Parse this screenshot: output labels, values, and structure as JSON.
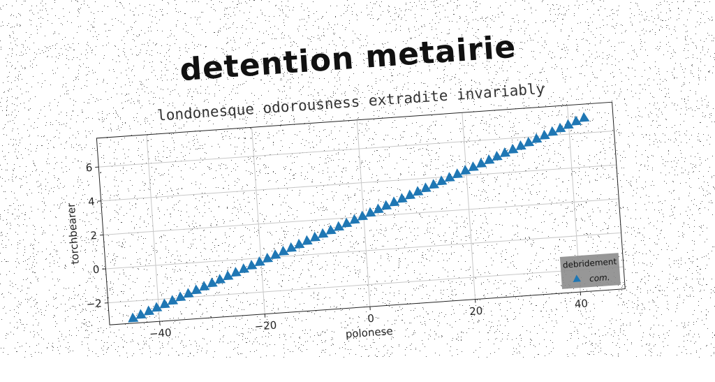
{
  "chart_data": {
    "type": "scatter",
    "title": "detention metairie",
    "subtitle": "londonesque odorousness extradite invariably",
    "xlabel": "polonese",
    "ylabel": "torchbearer",
    "xlim": [
      -49.5,
      48.5
    ],
    "ylim": [
      -3.3,
      7.7
    ],
    "xticks": [
      -40,
      -20,
      0,
      20,
      40
    ],
    "yticks": [
      -2,
      0,
      2,
      4,
      6
    ],
    "xtick_labels": [
      "−40",
      "−20",
      "0",
      "20",
      "40"
    ],
    "ytick_labels": [
      "−2",
      "0",
      "2",
      "4",
      "6"
    ],
    "grid": true,
    "legend": {
      "title": "debridement",
      "position": "bottom-right"
    },
    "series": [
      {
        "name": "com.",
        "marker": "triangle",
        "color": "#1f77b4",
        "x_start": -45,
        "x_end": 43,
        "count": 58,
        "y_start": -3.0,
        "y_end": 6.9
      }
    ]
  }
}
